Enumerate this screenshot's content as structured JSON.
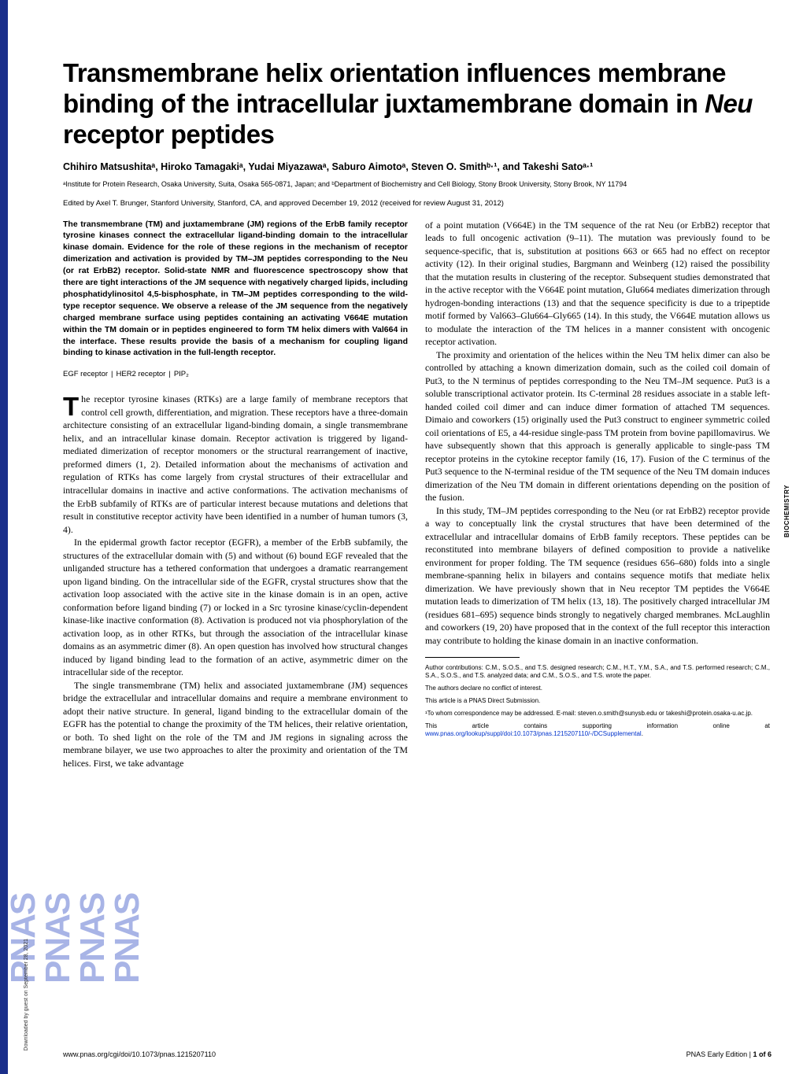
{
  "sidebar": {
    "vertical_text": "PNAS",
    "stripe_color": "#1a2e8a",
    "pnas_color": "#a8b4e6",
    "download_note": "Downloaded by guest on September 28, 2021"
  },
  "title": "Transmembrane helix orientation influences membrane binding of the intracellular juxtamembrane domain in Neu receptor peptides",
  "title_italic_word": "Neu",
  "authors_line": "Chihiro Matsushitaᵃ, Hiroko Tamagakiᵃ, Yudai Miyazawaᵃ, Saburo Aimotoᵃ, Steven O. Smithᵇ·¹, and Takeshi Satoᵃ·¹",
  "affiliations": "ᵃInstitute for Protein Research, Osaka University, Suita, Osaka 565-0871, Japan; and ᵇDepartment of Biochemistry and Cell Biology, Stony Brook University, Stony Brook, NY 11794",
  "edited_by": "Edited by Axel T. Brunger, Stanford University, Stanford, CA, and approved December 19, 2012 (received for review August 31, 2012)",
  "abstract": "The transmembrane (TM) and juxtamembrane (JM) regions of the ErbB family receptor tyrosine kinases connect the extracellular ligand-binding domain to the intracellular kinase domain. Evidence for the role of these regions in the mechanism of receptor dimerization and activation is provided by TM–JM peptides corresponding to the Neu (or rat ErbB2) receptor. Solid-state NMR and fluorescence spectroscopy show that there are tight interactions of the JM sequence with negatively charged lipids, including phosphatidylinositol 4,5-bisphosphate, in TM–JM peptides corresponding to the wild-type receptor sequence. We observe a release of the JM sequence from the negatively charged membrane surface using peptides containing an activating V664E mutation within the TM domain or in peptides engineered to form TM helix dimers with Val664 in the interface. These results provide the basis of a mechanism for coupling ligand binding to kinase activation in the full-length receptor.",
  "keywords": [
    "EGF receptor",
    "HER2 receptor",
    "PIP₂"
  ],
  "left_paragraphs": [
    "The receptor tyrosine kinases (RTKs) are a large family of membrane receptors that control cell growth, differentiation, and migration. These receptors have a three-domain architecture consisting of an extracellular ligand-binding domain, a single transmembrane helix, and an intracellular kinase domain. Receptor activation is triggered by ligand-mediated dimerization of receptor monomers or the structural rearrangement of inactive, preformed dimers (1, 2). Detailed information about the mechanisms of activation and regulation of RTKs has come largely from crystal structures of their extracellular and intracellular domains in inactive and active conformations. The activation mechanisms of the ErbB subfamily of RTKs are of particular interest because mutations and deletions that result in constitutive receptor activity have been identified in a number of human tumors (3, 4).",
    "In the epidermal growth factor receptor (EGFR), a member of the ErbB subfamily, the structures of the extracellular domain with (5) and without (6) bound EGF revealed that the unliganded structure has a tethered conformation that undergoes a dramatic rearrangement upon ligand binding. On the intracellular side of the EGFR, crystal structures show that the activation loop associated with the active site in the kinase domain is in an open, active conformation before ligand binding (7) or locked in a Src tyrosine kinase/cyclin-dependent kinase-like inactive conformation (8). Activation is produced not via phosphorylation of the activation loop, as in other RTKs, but through the association of the intracellular kinase domains as an asymmetric dimer (8). An open question has involved how structural changes induced by ligand binding lead to the formation of an active, asymmetric dimer on the intracellular side of the receptor.",
    "The single transmembrane (TM) helix and associated juxtamembrane (JM) sequences bridge the extracellular and intracellular domains and require a membrane environment to adopt their native structure. In general, ligand binding to the extracellular domain of the EGFR has the potential to change the proximity of the TM helices, their relative orientation, or both. To shed light on the role of the TM and JM regions in signaling across the membrane bilayer, we use two approaches to alter the proximity and orientation of the TM helices. First, we take advantage"
  ],
  "right_paragraphs": [
    "of a point mutation (V664E) in the TM sequence of the rat Neu (or ErbB2) receptor that leads to full oncogenic activation (9–11). The mutation was previously found to be sequence-specific, that is, substitution at positions 663 or 665 had no effect on receptor activity (12). In their original studies, Bargmann and Weinberg (12) raised the possibility that the mutation results in clustering of the receptor. Subsequent studies demonstrated that in the active receptor with the V664E point mutation, Glu664 mediates dimerization through hydrogen-bonding interactions (13) and that the sequence specificity is due to a tripeptide motif formed by Val663–Glu664–Gly665 (14). In this study, the V664E mutation allows us to modulate the interaction of the TM helices in a manner consistent with oncogenic receptor activation.",
    "The proximity and orientation of the helices within the Neu TM helix dimer can also be controlled by attaching a known dimerization domain, such as the coiled coil domain of Put3, to the N terminus of peptides corresponding to the Neu TM–JM sequence. Put3 is a soluble transcriptional activator protein. Its C-terminal 28 residues associate in a stable left-handed coiled coil dimer and can induce dimer formation of attached TM sequences. Dimaio and coworkers (15) originally used the Put3 construct to engineer symmetric coiled coil orientations of E5, a 44-residue single-pass TM protein from bovine papillomavirus. We have subsequently shown that this approach is generally applicable to single-pass TM receptor proteins in the cytokine receptor family (16, 17). Fusion of the C terminus of the Put3 sequence to the N-terminal residue of the TM sequence of the Neu TM domain induces dimerization of the Neu TM domain in different orientations depending on the position of the fusion.",
    "In this study, TM–JM peptides corresponding to the Neu (or rat ErbB2) receptor provide a way to conceptually link the crystal structures that have been determined of the extracellular and intracellular domains of ErbB family receptors. These peptides can be reconstituted into membrane bilayers of defined composition to provide a nativelike environment for proper folding. The TM sequence (residues 656–680) folds into a single membrane-spanning helix in bilayers and contains sequence motifs that mediate helix dimerization. We have previously shown that in Neu receptor TM peptides the V664E mutation leads to dimerization of TM helix (13, 18). The positively charged intracellular JM (residues 681–695) sequence binds strongly to negatively charged membranes. McLaughlin and coworkers (19, 20) have proposed that in the context of the full receptor this interaction may contribute to holding the kinase domain in an inactive conformation."
  ],
  "section_label": "BIOCHEMISTRY",
  "footnotes": {
    "contrib": "Author contributions: C.M., S.O.S., and T.S. designed research; C.M., H.T., Y.M., S.A., and T.S. performed research; C.M., S.A., S.O.S., and T.S. analyzed data; and C.M., S.O.S., and T.S. wrote the paper.",
    "conflict": "The authors declare no conflict of interest.",
    "direct": "This article is a PNAS Direct Submission.",
    "correspond": "¹To whom correspondence may be addressed. E-mail: steven.o.smith@sunysb.edu or takeshi@protein.osaka-u.ac.jp.",
    "supporting_prefix": "This article contains supporting information online at ",
    "supporting_link": "www.pnas.org/lookup/suppl/doi:10.1073/pnas.1215207110/-/DCSupplemental",
    "supporting_suffix": "."
  },
  "footer": {
    "left": "www.pnas.org/cgi/doi/10.1073/pnas.1215207110",
    "right_prefix": "PNAS Early Edition | ",
    "right_page": "1 of 6"
  },
  "colors": {
    "text": "#000000",
    "link": "#0033cc",
    "background": "#ffffff"
  },
  "typography": {
    "title_fontsize": 33,
    "authors_fontsize": 12.5,
    "affil_fontsize": 9,
    "body_fontsize": 11.8,
    "abstract_fontsize": 10.5,
    "footnote_fontsize": 8
  }
}
